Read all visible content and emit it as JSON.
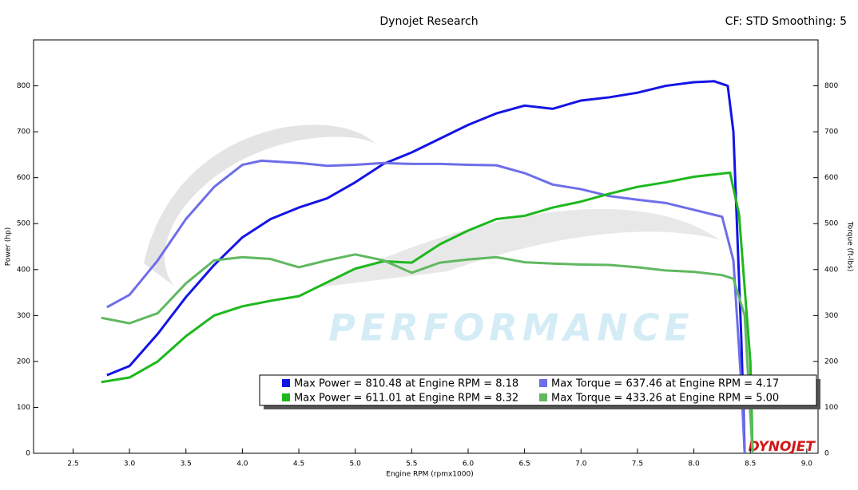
{
  "chart_data": {
    "type": "line",
    "title": "Dynojet Research",
    "subtitle": "CF: STD Smoothing: 5",
    "xlabel": "Engine RPM (rpmx1000)",
    "ylabel": "Power (hp)",
    "y2label": "Torque (ft-lbs)",
    "watermark": "PERFORMANCE",
    "logo": "DYNOJET",
    "xlim": [
      2.15,
      9.1
    ],
    "ylim": [
      0,
      900
    ],
    "y2lim": [
      0,
      900
    ],
    "xticks": [
      {
        "value": 2.5,
        "label": "2.5"
      },
      {
        "value": 3,
        "label": "3.0"
      },
      {
        "value": 3.5,
        "label": "3.5"
      },
      {
        "value": 4,
        "label": "4.0"
      },
      {
        "value": 4.5,
        "label": "4.5"
      },
      {
        "value": 5,
        "label": "5.0"
      },
      {
        "value": 5.5,
        "label": "5.5"
      },
      {
        "value": 6,
        "label": "6.0"
      },
      {
        "value": 6.5,
        "label": "6.5"
      },
      {
        "value": 7,
        "label": "7.0"
      },
      {
        "value": 7.5,
        "label": "7.5"
      },
      {
        "value": 8,
        "label": "8.0"
      },
      {
        "value": 8.5,
        "label": "8.5"
      },
      {
        "value": 9,
        "label": "9.0"
      }
    ],
    "yticks": [
      0,
      100,
      200,
      300,
      400,
      500,
      600,
      700,
      800
    ],
    "y2ticks": [
      0,
      100,
      200,
      300,
      400,
      500,
      600,
      700,
      800
    ],
    "series": [
      {
        "name": "Max Power = 810.48 at Engine RPM = 8.18",
        "color": "#1414e6",
        "x": [
          2.8,
          3.0,
          3.25,
          3.5,
          3.75,
          4.0,
          4.25,
          4.5,
          4.75,
          5.0,
          5.25,
          5.5,
          5.75,
          6.0,
          6.25,
          6.5,
          6.75,
          7.0,
          7.25,
          7.5,
          7.75,
          8.0,
          8.18,
          8.3,
          8.35,
          8.42,
          8.45
        ],
        "values": [
          170,
          190,
          260,
          340,
          410,
          470,
          510,
          535,
          555,
          590,
          630,
          655,
          685,
          715,
          740,
          757,
          750,
          768,
          775,
          785,
          800,
          808,
          810,
          800,
          700,
          250,
          0
        ]
      },
      {
        "name": "Max Torque = 637.46 at Engine RPM = 4.17",
        "color": "#6e6ee8",
        "axis": "y2",
        "x": [
          2.8,
          3.0,
          3.25,
          3.5,
          3.75,
          4.0,
          4.17,
          4.5,
          4.75,
          5.0,
          5.25,
          5.5,
          5.75,
          6.0,
          6.25,
          6.5,
          6.75,
          7.0,
          7.25,
          7.5,
          7.75,
          8.0,
          8.25,
          8.35,
          8.42,
          8.45
        ],
        "values": [
          318,
          345,
          420,
          510,
          580,
          628,
          637,
          632,
          626,
          628,
          632,
          630,
          630,
          628,
          627,
          610,
          585,
          575,
          560,
          552,
          545,
          530,
          515,
          420,
          150,
          0
        ]
      },
      {
        "name": "Max Power = 611.01 at Engine RPM = 8.32",
        "color": "#1db81d",
        "x": [
          2.75,
          3.0,
          3.25,
          3.5,
          3.75,
          4.0,
          4.25,
          4.5,
          4.75,
          5.0,
          5.25,
          5.5,
          5.75,
          6.0,
          6.25,
          6.5,
          6.75,
          7.0,
          7.25,
          7.5,
          7.75,
          8.0,
          8.32,
          8.4,
          8.5,
          8.52
        ],
        "values": [
          155,
          165,
          200,
          255,
          300,
          320,
          332,
          342,
          372,
          402,
          418,
          415,
          455,
          485,
          510,
          517,
          535,
          548,
          565,
          580,
          590,
          602,
          611,
          520,
          200,
          0
        ]
      },
      {
        "name": "Max Torque = 433.26 at Engine RPM = 5.00",
        "color": "#60b860",
        "axis": "y2",
        "x": [
          2.75,
          3.0,
          3.25,
          3.5,
          3.75,
          4.0,
          4.25,
          4.5,
          4.75,
          5.0,
          5.25,
          5.5,
          5.75,
          6.0,
          6.25,
          6.5,
          6.75,
          7.0,
          7.25,
          7.5,
          7.75,
          8.0,
          8.25,
          8.35,
          8.45,
          8.52
        ],
        "values": [
          295,
          283,
          305,
          370,
          420,
          427,
          423,
          405,
          420,
          433,
          420,
          393,
          415,
          422,
          427,
          416,
          413,
          411,
          410,
          405,
          398,
          395,
          388,
          380,
          300,
          0
        ]
      }
    ]
  }
}
